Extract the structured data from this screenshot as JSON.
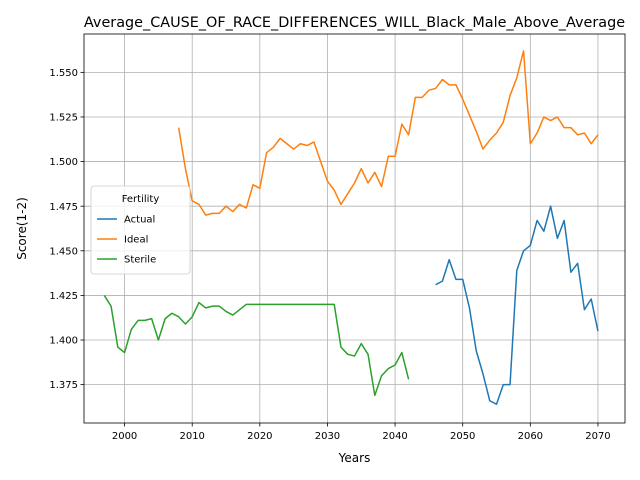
{
  "chart_data": {
    "type": "line",
    "title": "Average_CAUSE_OF_RACE_DIFFERENCES_WILL_Black_Male_Above_Average",
    "xlabel": "Years",
    "ylabel": "Score(1-2)",
    "xlim": [
      1994,
      2074
    ],
    "ylim": [
      1.3535,
      1.5715
    ],
    "xticks": [
      2000,
      2010,
      2020,
      2030,
      2040,
      2050,
      2060,
      2070
    ],
    "yticks": [
      1.375,
      1.4,
      1.425,
      1.45,
      1.475,
      1.5,
      1.525,
      1.55
    ],
    "grid": true,
    "legend": {
      "title": "Fertility",
      "placement": "center-left"
    },
    "series": [
      {
        "name": "Actual",
        "color": "#1f77b4",
        "x": [
          2046,
          2047,
          2048,
          2049,
          2050,
          2051,
          2052,
          2053,
          2054,
          2055,
          2056,
          2057,
          2058,
          2059,
          2060,
          2061,
          2062,
          2063,
          2064,
          2065,
          2066,
          2067,
          2068,
          2069,
          2070
        ],
        "y": [
          1.431,
          1.433,
          1.445,
          1.434,
          1.434,
          1.418,
          1.394,
          1.381,
          1.366,
          1.364,
          1.375,
          1.375,
          1.439,
          1.45,
          1.453,
          1.467,
          1.461,
          1.475,
          1.457,
          1.467,
          1.438,
          1.443,
          1.417,
          1.423,
          1.405
        ]
      },
      {
        "name": "Ideal",
        "color": "#ff7f0e",
        "x": [
          2008,
          2009,
          2010,
          2011,
          2012,
          2013,
          2014,
          2015,
          2016,
          2017,
          2018,
          2019,
          2020,
          2021,
          2022,
          2023,
          2024,
          2025,
          2026,
          2027,
          2028,
          2029,
          2030,
          2031,
          2032,
          2033,
          2034,
          2035,
          2036,
          2037,
          2038,
          2039,
          2040,
          2041,
          2042,
          2043,
          2044,
          2045,
          2046,
          2047,
          2048,
          2049,
          2050,
          2051,
          2052,
          2053,
          2054,
          2055,
          2056,
          2057,
          2058,
          2059,
          2060,
          2061,
          2062,
          2063,
          2064,
          2065,
          2066,
          2067,
          2068,
          2069,
          2070
        ],
        "y": [
          1.519,
          1.496,
          1.478,
          1.476,
          1.47,
          1.471,
          1.471,
          1.475,
          1.472,
          1.476,
          1.474,
          1.487,
          1.485,
          1.505,
          1.508,
          1.513,
          1.51,
          1.507,
          1.51,
          1.509,
          1.511,
          1.5,
          1.489,
          1.484,
          1.476,
          1.482,
          1.488,
          1.496,
          1.488,
          1.494,
          1.486,
          1.503,
          1.503,
          1.521,
          1.515,
          1.536,
          1.536,
          1.54,
          1.541,
          1.546,
          1.543,
          1.543,
          1.535,
          1.526,
          1.517,
          1.507,
          1.512,
          1.516,
          1.522,
          1.537,
          1.547,
          1.562,
          1.51,
          1.516,
          1.525,
          1.523,
          1.525,
          1.519,
          1.519,
          1.515,
          1.516,
          1.51,
          1.515
        ]
      },
      {
        "name": "Sterile",
        "color": "#2ca02c",
        "x": [
          1997,
          1998,
          1999,
          2000,
          2001,
          2002,
          2003,
          2004,
          2005,
          2006,
          2007,
          2008,
          2009,
          2010,
          2011,
          2012,
          2013,
          2014,
          2015,
          2016,
          2017,
          2018,
          2019,
          2020,
          2021,
          2022,
          2023,
          2024,
          2025,
          2026,
          2027,
          2028,
          2029,
          2030,
          2031,
          2032,
          2033,
          2034,
          2035,
          2036,
          2037,
          2038,
          2039,
          2040,
          2041,
          2042
        ],
        "y": [
          1.425,
          1.419,
          1.396,
          1.393,
          1.406,
          1.411,
          1.411,
          1.412,
          1.4,
          1.412,
          1.415,
          1.413,
          1.409,
          1.413,
          1.421,
          1.418,
          1.419,
          1.419,
          1.416,
          1.414,
          1.417,
          1.42,
          1.42,
          1.42,
          1.42,
          1.42,
          1.42,
          1.42,
          1.42,
          1.42,
          1.42,
          1.42,
          1.42,
          1.42,
          1.42,
          1.396,
          1.392,
          1.391,
          1.398,
          1.392,
          1.369,
          1.38,
          1.384,
          1.386,
          1.393,
          1.378
        ]
      }
    ]
  }
}
